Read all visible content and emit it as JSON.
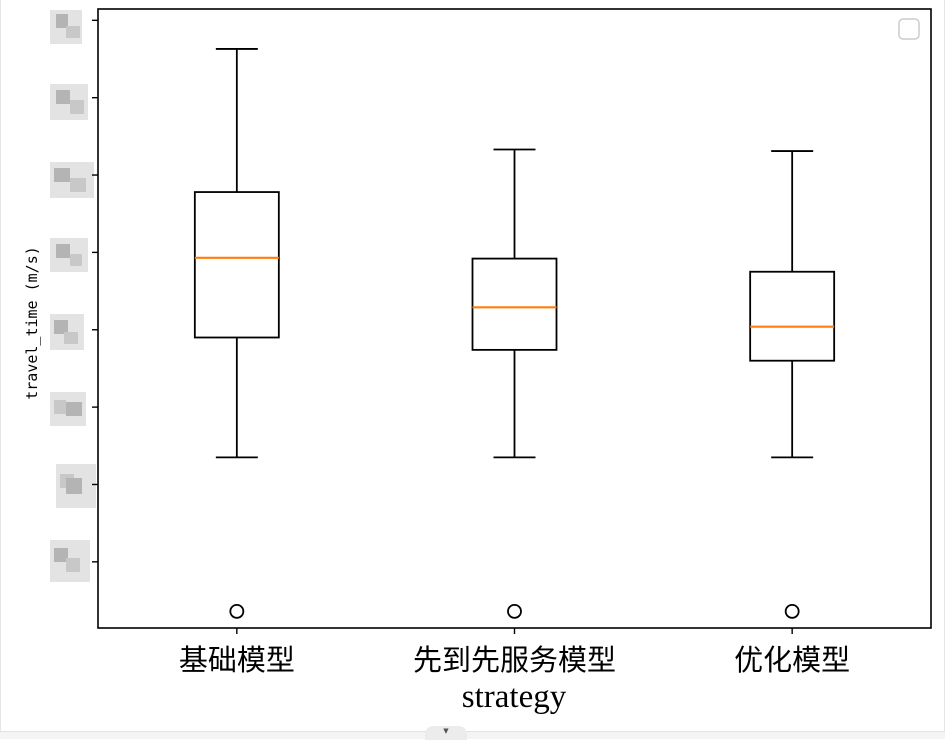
{
  "chart_data": {
    "type": "box",
    "xlabel": "strategy",
    "ylabel": "travel_time (m/s)",
    "categories": [
      "基础模型",
      "先到先服务模型",
      "优化模型"
    ],
    "ylim": [
      0,
      800
    ],
    "y_tick_values": [
      100,
      200,
      300,
      400,
      500,
      600,
      700,
      800
    ],
    "grid": false,
    "legend": "top-right (empty)",
    "colors": {
      "box": "#000000",
      "median": "#ff7f0e",
      "flier": "#000000"
    },
    "boxes": [
      {
        "category": "基础模型",
        "whisker_low": 235,
        "q1": 390,
        "median": 493,
        "q3": 578,
        "whisker_high": 763,
        "fliers": [
          36
        ]
      },
      {
        "category": "先到先服务模型",
        "whisker_low": 235,
        "q1": 374,
        "median": 429,
        "q3": 492,
        "whisker_high": 633,
        "fliers": [
          36
        ]
      },
      {
        "category": "优化模型",
        "whisker_low": 235,
        "q1": 360,
        "median": 404,
        "q3": 475,
        "whisker_high": 631,
        "fliers": [
          36
        ]
      }
    ]
  }
}
